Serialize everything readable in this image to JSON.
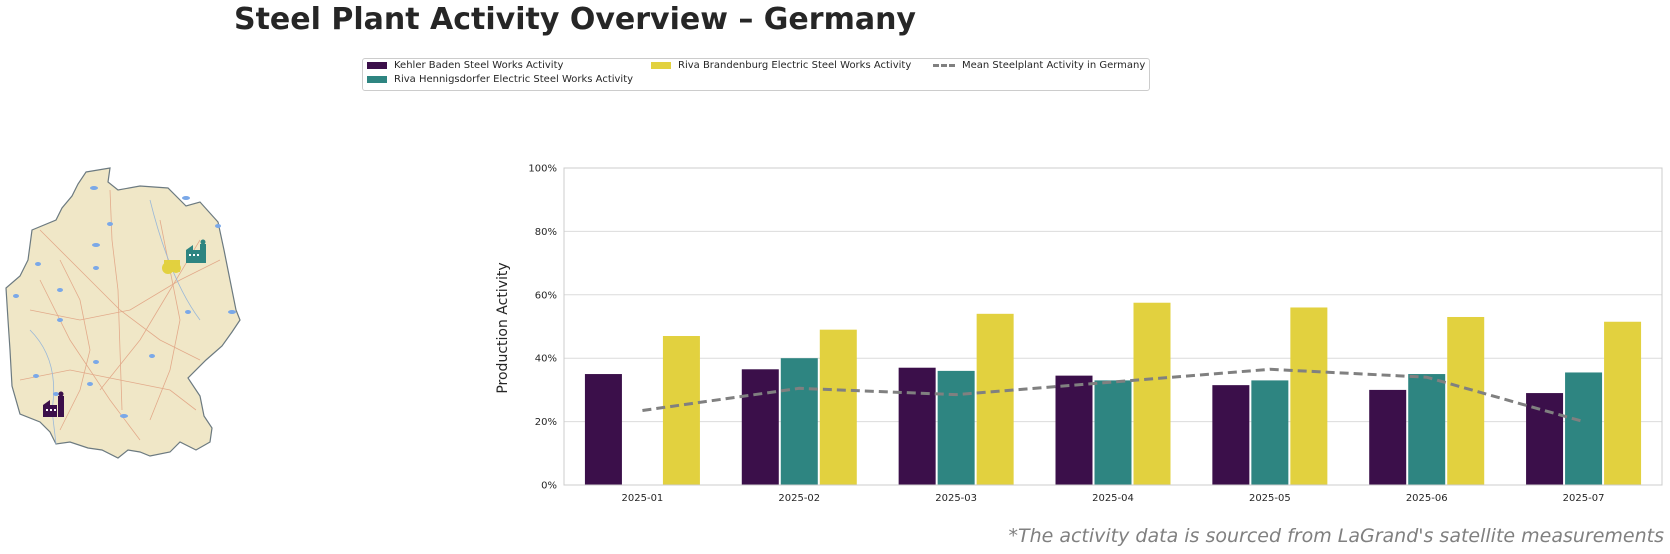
{
  "title": "Steel Plant Activity Overview – Germany",
  "footnote": "*The activity data is sourced from LaGrand's satellite measurements",
  "legend": {
    "entries": [
      {
        "label": "Kehler Baden Steel Works Activity",
        "color": "#3b0f4a"
      },
      {
        "label": "Riva Hennigsdorfer Electric Steel Works Activity",
        "color": "#2e8581"
      },
      {
        "label": "Riva Brandenburg Electric Steel Works Activity",
        "color": "#e2d13f"
      },
      {
        "label": "Mean Steelplant Activity in Germany",
        "color": "#808080"
      }
    ]
  },
  "map": {
    "markers": [
      {
        "name": "factory-marker-kehler",
        "color": "#3b0f4a"
      },
      {
        "name": "factory-marker-hennigsdorf",
        "color": "#2e8581"
      },
      {
        "name": "factory-marker-brandenburg",
        "color": "#e2d13f"
      }
    ]
  },
  "chart_data": {
    "type": "bar",
    "categories": [
      "2025-01",
      "2025-02",
      "2025-03",
      "2025-04",
      "2025-05",
      "2025-06",
      "2025-07"
    ],
    "series": [
      {
        "name": "Kehler Baden Steel Works Activity",
        "color": "#3b0f4a",
        "values": [
          35,
          36.5,
          37,
          34.5,
          31.5,
          30,
          29
        ]
      },
      {
        "name": "Riva Hennigsdorfer Electric Steel Works Activity",
        "color": "#2e8581",
        "values": [
          null,
          40,
          36,
          33,
          33,
          35,
          35.5
        ]
      },
      {
        "name": "Riva Brandenburg Electric Steel Works Activity",
        "color": "#e2d13f",
        "values": [
          47,
          49,
          54,
          57.5,
          56,
          53,
          51.5
        ]
      }
    ],
    "mean_line": {
      "name": "Mean Steelplant Activity in Germany",
      "color": "#808080",
      "style": "dashed",
      "values": [
        23.5,
        30.5,
        28.5,
        32.5,
        36.5,
        34,
        20
      ]
    },
    "ylabel": "Production Activity",
    "yticks": [
      "0%",
      "20%",
      "40%",
      "60%",
      "80%",
      "100%"
    ],
    "ylim": [
      0,
      100
    ],
    "grid": true,
    "legend_position": "top"
  }
}
